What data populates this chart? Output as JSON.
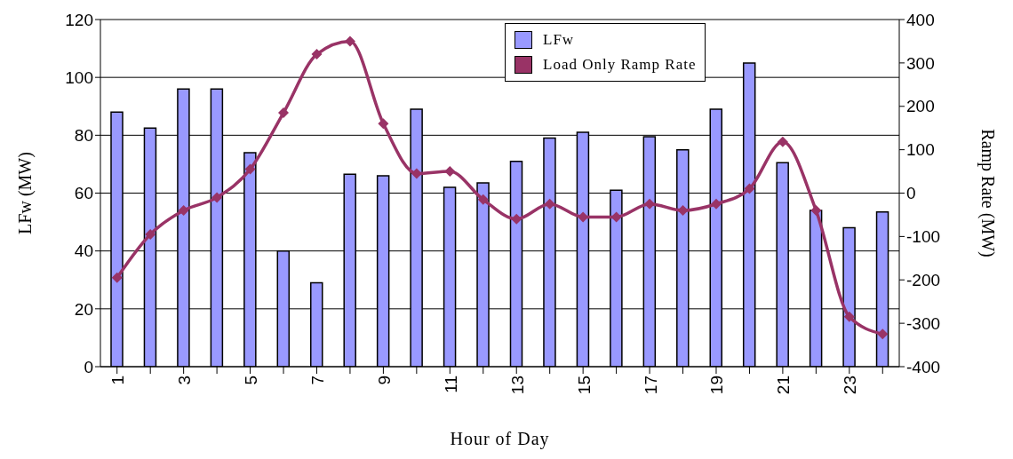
{
  "chart_data": {
    "type": "bar",
    "xlabel": "Hour of Day",
    "ylabel": "LFw (MW)",
    "y2label": "Ramp Rate (MW)",
    "categories": [
      "1",
      null,
      "3",
      null,
      "5",
      null,
      "7",
      null,
      "9",
      null,
      "11",
      null,
      "13",
      null,
      "15",
      null,
      "17",
      null,
      "19",
      null,
      "21",
      null,
      "23",
      null
    ],
    "series": [
      {
        "name": "LFw",
        "color": "#9999ff",
        "values": [
          88,
          82.5,
          96,
          96,
          74,
          40,
          29,
          66.5,
          66,
          89,
          62,
          63.5,
          71,
          79,
          81,
          61,
          79.5,
          75,
          89,
          105,
          70.5,
          54,
          48,
          53.5
        ]
      },
      {
        "name": "Load Only Ramp Rate",
        "type": "line",
        "axis": "y2",
        "color": "#993366",
        "values": [
          -195,
          -95,
          -40,
          -10,
          55,
          185,
          320,
          350,
          160,
          45,
          50,
          -15,
          -60,
          -25,
          -55,
          -55,
          -25,
          -40,
          -25,
          10,
          118,
          -40,
          -285,
          -325
        ]
      }
    ],
    "ylim": [
      0,
      120
    ],
    "yticks": [
      0,
      20,
      40,
      60,
      80,
      100,
      120
    ],
    "y2lim": [
      -400,
      400
    ],
    "y2ticks": [
      -400,
      -300,
      -200,
      -100,
      0,
      100,
      200,
      300,
      400
    ],
    "grid": "y",
    "legend": "top",
    "marker": "diamond",
    "line_style": "solid"
  }
}
